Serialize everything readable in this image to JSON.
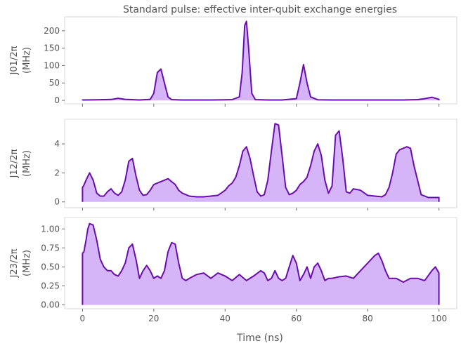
{
  "chart_data": {
    "type": "area",
    "title": "Standard pulse: effective inter-qubit exchange energies",
    "xlabel": "Time (ns)",
    "xlim": [
      -5,
      105
    ],
    "xticks": [
      "0",
      "20",
      "40",
      "60",
      "80",
      "100"
    ],
    "xtick_values": [
      0,
      20,
      40,
      60,
      80,
      100
    ],
    "grid": false,
    "line_color": "#6a0dad",
    "fill_color": "#d6b4f8",
    "panels": [
      {
        "ylabel_line1": "J01/2π",
        "ylabel_line2": "(MHz)",
        "ylim": [
          -10,
          240
        ],
        "yticks": [
          "0",
          "50",
          "100",
          "150",
          "200"
        ],
        "ytick_values": [
          0,
          50,
          100,
          150,
          200
        ],
        "series": [
          {
            "x": [
              0,
              4,
              8,
              10,
              12,
              16,
              19,
              20,
              21,
              22,
              23,
              24,
              25,
              28,
              32,
              36,
              40,
              42,
              44,
              44.8,
              45.5,
              46,
              46.6,
              47.5,
              48.5,
              52,
              56,
              60,
              61,
              62,
              63,
              64,
              66,
              70,
              80,
              90,
              94,
              96,
              98,
              100
            ],
            "y": [
              1,
              1.5,
              2.5,
              6,
              3,
              1,
              3,
              20,
              80,
              90,
              50,
              10,
              2,
              1,
              1,
              1,
              1.5,
              2,
              10,
              80,
              215,
              227,
              150,
              20,
              2,
              1,
              1,
              5,
              50,
              103,
              50,
              10,
              1.5,
              1,
              1,
              1,
              2,
              5,
              9,
              3
            ]
          }
        ]
      },
      {
        "ylabel_line1": "J12/2π",
        "ylabel_line2": "(MHz)",
        "ylim": [
          -0.4,
          5.7
        ],
        "yticks": [
          "0",
          "2",
          "4"
        ],
        "ytick_values": [
          0,
          2,
          4
        ],
        "series": [
          {
            "x": [
              0,
              0.3,
              1,
              2,
              3,
              4,
              5,
              6,
              7,
              8,
              9,
              10,
              11,
              12,
              13,
              14,
              15,
              16,
              17,
              18,
              19,
              20,
              22,
              24,
              26,
              27,
              28,
              30,
              32,
              34,
              36,
              38,
              40,
              41,
              42,
              43,
              44,
              45,
              46,
              47,
              48,
              49,
              50,
              51,
              52,
              53,
              54,
              55,
              56,
              57,
              58,
              59,
              60,
              61,
              62,
              63,
              64,
              65,
              66,
              67,
              68,
              69,
              70,
              71,
              72,
              73,
              74,
              75,
              76,
              78,
              80,
              82,
              84,
              85,
              86,
              87,
              88,
              89,
              90,
              91,
              92,
              93,
              95,
              97,
              99,
              100
            ],
            "y": [
              1.0,
              1.1,
              1.5,
              2.0,
              1.5,
              0.6,
              0.4,
              0.4,
              0.7,
              0.9,
              0.6,
              0.45,
              0.7,
              1.5,
              2.8,
              3.0,
              1.8,
              0.8,
              0.45,
              0.5,
              0.8,
              1.2,
              1.4,
              1.6,
              1.2,
              0.8,
              0.6,
              0.4,
              0.35,
              0.35,
              0.4,
              0.45,
              0.8,
              1.1,
              1.3,
              1.7,
              2.5,
              3.5,
              3.8,
              3.0,
              1.8,
              0.7,
              0.4,
              0.5,
              1.5,
              3.5,
              5.4,
              5.3,
              3.2,
              1.0,
              0.5,
              0.6,
              0.8,
              1.2,
              1.4,
              1.7,
              2.5,
              3.5,
              4.0,
              3.2,
              1.5,
              0.6,
              1.1,
              4.6,
              4.9,
              3.0,
              0.7,
              0.6,
              0.9,
              0.8,
              0.45,
              0.4,
              0.35,
              0.5,
              1.0,
              2.0,
              3.3,
              3.6,
              3.7,
              3.8,
              3.7,
              2.5,
              0.5,
              0.3,
              0.3,
              0.3
            ]
          }
        ]
      },
      {
        "ylabel_line1": "J23/2π",
        "ylabel_line2": "(MHz)",
        "ylim": [
          -0.05,
          1.15
        ],
        "yticks": [
          "0.00",
          "0.25",
          "0.50",
          "0.75",
          "1.00"
        ],
        "ytick_values": [
          0,
          0.25,
          0.5,
          0.75,
          1.0
        ],
        "series": [
          {
            "x": [
              0,
              0.4,
              1,
              1.5,
              2,
              3,
              4,
              5,
              6,
              7,
              8,
              9,
              10,
              11,
              12,
              13,
              14,
              15,
              16,
              17,
              18,
              19,
              20,
              21,
              22,
              23,
              24,
              25,
              26,
              27,
              28,
              29,
              30,
              32,
              34,
              36,
              38,
              40,
              42,
              44,
              46,
              48,
              50,
              51,
              52,
              53,
              54,
              55,
              56,
              57,
              58,
              59,
              60,
              61,
              62,
              63,
              64,
              65,
              66,
              67,
              68,
              69,
              70,
              72,
              74,
              76,
              78,
              80,
              82,
              83,
              84,
              85,
              86,
              88,
              90,
              92,
              94,
              96,
              98,
              99,
              100
            ],
            "y": [
              0.68,
              0.7,
              0.85,
              1.0,
              1.07,
              1.05,
              0.85,
              0.6,
              0.5,
              0.45,
              0.45,
              0.4,
              0.38,
              0.45,
              0.55,
              0.75,
              0.8,
              0.6,
              0.35,
              0.45,
              0.52,
              0.45,
              0.35,
              0.38,
              0.35,
              0.45,
              0.7,
              0.82,
              0.8,
              0.55,
              0.35,
              0.32,
              0.35,
              0.4,
              0.42,
              0.35,
              0.42,
              0.38,
              0.32,
              0.4,
              0.32,
              0.38,
              0.45,
              0.42,
              0.32,
              0.35,
              0.45,
              0.35,
              0.32,
              0.35,
              0.5,
              0.65,
              0.55,
              0.32,
              0.4,
              0.5,
              0.35,
              0.5,
              0.55,
              0.45,
              0.32,
              0.35,
              0.35,
              0.37,
              0.38,
              0.35,
              0.45,
              0.55,
              0.65,
              0.68,
              0.58,
              0.45,
              0.35,
              0.35,
              0.3,
              0.35,
              0.35,
              0.32,
              0.45,
              0.5,
              0.42
            ]
          }
        ]
      }
    ]
  }
}
